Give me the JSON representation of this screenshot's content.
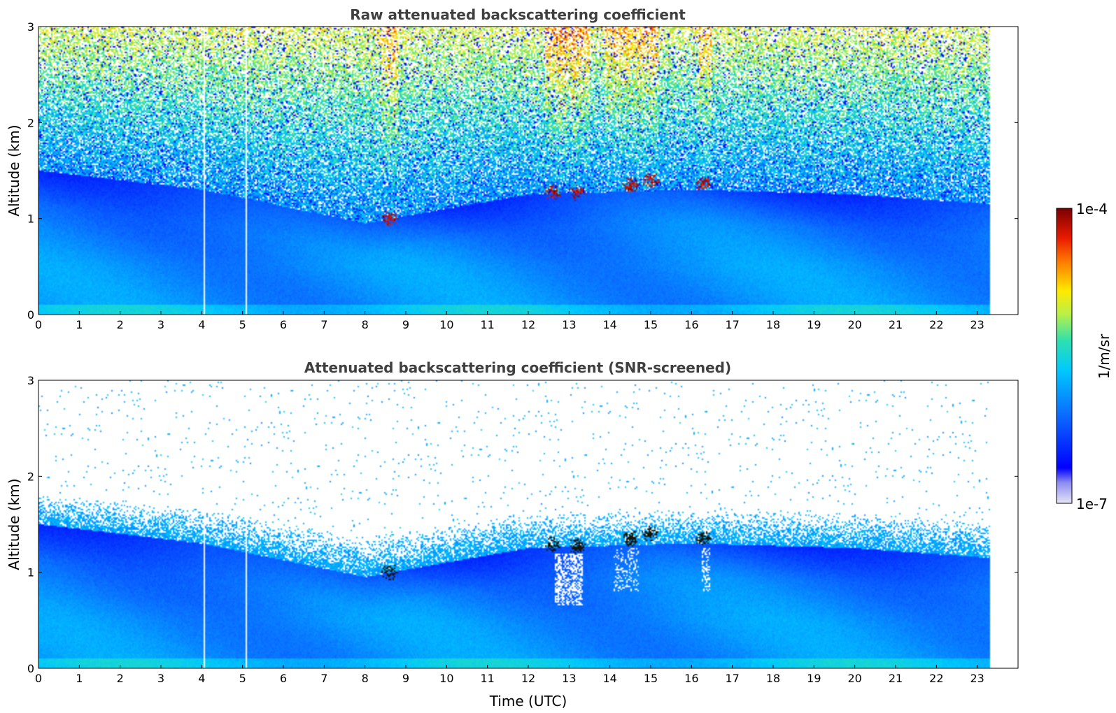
{
  "chart_data": [
    {
      "type": "heatmap",
      "title": "Raw attenuated backscattering coefficient",
      "xlabel": "",
      "ylabel": "Altitude (km)",
      "xlim": [
        0,
        24
      ],
      "ylim": [
        0,
        3
      ],
      "x_ticks": [
        "0",
        "1",
        "2",
        "3",
        "4",
        "5",
        "6",
        "7",
        "8",
        "9",
        "10",
        "11",
        "12",
        "13",
        "14",
        "15",
        "16",
        "17",
        "18",
        "19",
        "20",
        "21",
        "22",
        "23"
      ],
      "y_ticks": [
        "0",
        "1",
        "2",
        "3"
      ],
      "data_end_hour": 23.3,
      "screened": false,
      "data_gaps_hours": [
        4.05,
        5.1
      ],
      "boundary_layer_top_km": [
        {
          "x": 0,
          "y": 1.5
        },
        {
          "x": 4,
          "y": 1.3
        },
        {
          "x": 8,
          "y": 0.95
        },
        {
          "x": 12,
          "y": 1.25
        },
        {
          "x": 16,
          "y": 1.3
        },
        {
          "x": 20,
          "y": 1.25
        },
        {
          "x": 23.3,
          "y": 1.15
        }
      ],
      "cloud_patches": [
        {
          "x": 8.6,
          "y": 1.0
        },
        {
          "x": 12.6,
          "y": 1.28
        },
        {
          "x": 13.2,
          "y": 1.27
        },
        {
          "x": 14.5,
          "y": 1.35
        },
        {
          "x": 15.0,
          "y": 1.4
        },
        {
          "x": 16.3,
          "y": 1.35
        }
      ]
    },
    {
      "type": "heatmap",
      "title": "Attenuated backscattering coefficient (SNR-screened)",
      "xlabel": "Time (UTC)",
      "ylabel": "Altitude (km)",
      "xlim": [
        0,
        24
      ],
      "ylim": [
        0,
        3
      ],
      "x_ticks": [
        "0",
        "1",
        "2",
        "3",
        "4",
        "5",
        "6",
        "7",
        "8",
        "9",
        "10",
        "11",
        "12",
        "13",
        "14",
        "15",
        "16",
        "17",
        "18",
        "19",
        "20",
        "21",
        "22",
        "23"
      ],
      "y_ticks": [
        "0",
        "1",
        "2",
        "3"
      ],
      "data_end_hour": 23.3,
      "screened": true,
      "data_gaps_hours": [
        4.05,
        5.1
      ],
      "boundary_layer_top_km": [
        {
          "x": 0,
          "y": 1.5
        },
        {
          "x": 4,
          "y": 1.3
        },
        {
          "x": 8,
          "y": 0.95
        },
        {
          "x": 12,
          "y": 1.25
        },
        {
          "x": 16,
          "y": 1.3
        },
        {
          "x": 20,
          "y": 1.25
        },
        {
          "x": 23.3,
          "y": 1.15
        }
      ],
      "cloud_patches": [
        {
          "x": 8.6,
          "y": 1.0
        },
        {
          "x": 12.6,
          "y": 1.28
        },
        {
          "x": 13.2,
          "y": 1.27
        },
        {
          "x": 14.5,
          "y": 1.35
        },
        {
          "x": 15.0,
          "y": 1.4
        },
        {
          "x": 16.3,
          "y": 1.35
        }
      ]
    }
  ],
  "colorbar": {
    "label": "1/m/sr",
    "max_label": "1e-4",
    "min_label": "1e-7",
    "scale": "log",
    "range": [
      1e-07,
      0.0001
    ],
    "colormap": [
      "#e6e6f7",
      "#0000ff",
      "#0a6cff",
      "#00c8ff",
      "#2de0b0",
      "#b8f04a",
      "#ffea00",
      "#ff7a00",
      "#e81a00",
      "#7a0000"
    ]
  }
}
